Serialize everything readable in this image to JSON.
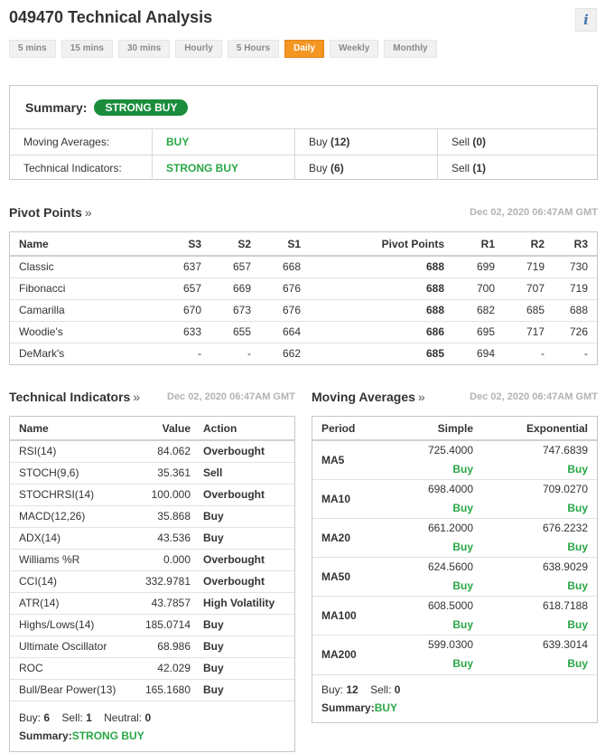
{
  "header": {
    "title": "049470 Technical Analysis",
    "info_label": "i"
  },
  "tabs": [
    {
      "label": "5 mins",
      "active": false
    },
    {
      "label": "15 mins",
      "active": false
    },
    {
      "label": "30 mins",
      "active": false
    },
    {
      "label": "Hourly",
      "active": false
    },
    {
      "label": "5 Hours",
      "active": false
    },
    {
      "label": "Daily",
      "active": true
    },
    {
      "label": "Weekly",
      "active": false
    },
    {
      "label": "Monthly",
      "active": false
    }
  ],
  "summary": {
    "label": "Summary:",
    "value": "STRONG BUY",
    "rows": [
      {
        "name": "Moving Averages:",
        "signal": "BUY",
        "buy_label": "Buy",
        "buy": "(12)",
        "sell_label": "Sell",
        "sell": "(0)"
      },
      {
        "name": "Technical Indicators:",
        "signal": "STRONG BUY",
        "buy_label": "Buy",
        "buy": "(6)",
        "sell_label": "Sell",
        "sell": "(1)"
      }
    ]
  },
  "pivot": {
    "title": "Pivot Points",
    "arrow": "»",
    "date": "Dec 02, 2020 06:47AM GMT",
    "columns": [
      "Name",
      "S3",
      "S2",
      "S1",
      "Pivot Points",
      "R1",
      "R2",
      "R3"
    ],
    "rows": [
      [
        "Classic",
        "637",
        "657",
        "668",
        "688",
        "699",
        "719",
        "730"
      ],
      [
        "Fibonacci",
        "657",
        "669",
        "676",
        "688",
        "700",
        "707",
        "719"
      ],
      [
        "Camarilla",
        "670",
        "673",
        "676",
        "688",
        "682",
        "685",
        "688"
      ],
      [
        "Woodie's",
        "633",
        "655",
        "664",
        "686",
        "695",
        "717",
        "726"
      ],
      [
        "DeMark's",
        "-",
        "-",
        "662",
        "685",
        "694",
        "-",
        "-"
      ]
    ]
  },
  "technical": {
    "title": "Technical Indicators",
    "arrow": "»",
    "date": "Dec 02, 2020 06:47AM GMT",
    "columns": [
      "Name",
      "Value",
      "Action"
    ],
    "rows": [
      {
        "name": "RSI(14)",
        "value": "84.062",
        "action": "Overbought",
        "type": "neutral"
      },
      {
        "name": "STOCH(9,6)",
        "value": "35.361",
        "action": "Sell",
        "type": "sell"
      },
      {
        "name": "STOCHRSI(14)",
        "value": "100.000",
        "action": "Overbought",
        "type": "neutral"
      },
      {
        "name": "MACD(12,26)",
        "value": "35.868",
        "action": "Buy",
        "type": "buy"
      },
      {
        "name": "ADX(14)",
        "value": "43.536",
        "action": "Buy",
        "type": "buy"
      },
      {
        "name": "Williams %R",
        "value": "0.000",
        "action": "Overbought",
        "type": "neutral"
      },
      {
        "name": "CCI(14)",
        "value": "332.9781",
        "action": "Overbought",
        "type": "neutral"
      },
      {
        "name": "ATR(14)",
        "value": "43.7857",
        "action": "High Volatility",
        "type": "neutral"
      },
      {
        "name": "Highs/Lows(14)",
        "value": "185.0714",
        "action": "Buy",
        "type": "buy"
      },
      {
        "name": "Ultimate Oscillator",
        "value": "68.986",
        "action": "Buy",
        "type": "buy"
      },
      {
        "name": "ROC",
        "value": "42.029",
        "action": "Buy",
        "type": "buy"
      },
      {
        "name": "Bull/Bear Power(13)",
        "value": "165.1680",
        "action": "Buy",
        "type": "buy"
      }
    ],
    "footer": {
      "buy_label": "Buy:",
      "buy": "6",
      "sell_label": "Sell:",
      "sell": "1",
      "neutral_label": "Neutral:",
      "neutral": "0",
      "summary_label": "Summary:",
      "summary": "STRONG BUY"
    }
  },
  "moving": {
    "title": "Moving Averages",
    "arrow": "»",
    "date": "Dec 02, 2020 06:47AM GMT",
    "columns": [
      "Period",
      "Simple",
      "Exponential"
    ],
    "rows": [
      {
        "period": "MA5",
        "simple": "725.4000",
        "simple_action": "Buy",
        "exp": "747.6839",
        "exp_action": "Buy"
      },
      {
        "period": "MA10",
        "simple": "698.4000",
        "simple_action": "Buy",
        "exp": "709.0270",
        "exp_action": "Buy"
      },
      {
        "period": "MA20",
        "simple": "661.2000",
        "simple_action": "Buy",
        "exp": "676.2232",
        "exp_action": "Buy"
      },
      {
        "period": "MA50",
        "simple": "624.5600",
        "simple_action": "Buy",
        "exp": "638.9029",
        "exp_action": "Buy"
      },
      {
        "period": "MA100",
        "simple": "608.5000",
        "simple_action": "Buy",
        "exp": "618.7188",
        "exp_action": "Buy"
      },
      {
        "period": "MA200",
        "simple": "599.0300",
        "simple_action": "Buy",
        "exp": "639.3014",
        "exp_action": "Buy"
      }
    ],
    "footer": {
      "buy_label": "Buy:",
      "buy": "12",
      "sell_label": "Sell:",
      "sell": "0",
      "summary_label": "Summary:",
      "summary": "BUY"
    }
  }
}
